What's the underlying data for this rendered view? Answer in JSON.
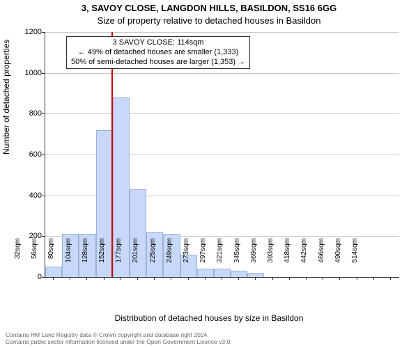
{
  "title_line1": "3, SAVOY CLOSE, LANGDON HILLS, BASILDON, SS16 6GG",
  "title_line2": "Size of property relative to detached houses in Basildon",
  "ylabel": "Number of detached properties",
  "xlabel": "Distribution of detached houses by size in Basildon",
  "footer_line1": "Contains HM Land Registry data © Crown copyright and database right 2024.",
  "footer_line2": "Contains public sector information licensed under the Open Government Licence v3.0.",
  "chart": {
    "type": "histogram",
    "background_color": "#ffffff",
    "grid_color": "#c8c8c8",
    "axis_color": "#333333",
    "bar_fill": "#c8d8f8",
    "bar_stroke": "#9db2d6",
    "marker_color": "#cc0000",
    "marker_value": 114,
    "ylim": [
      0,
      1200
    ],
    "ytick_step": 200,
    "yticks": [
      0,
      200,
      400,
      600,
      800,
      1000,
      1200
    ],
    "x_start": 20,
    "bin_width": 24,
    "n_bins": 21,
    "x_categories": [
      "32sqm",
      "56sqm",
      "80sqm",
      "104sqm",
      "128sqm",
      "152sqm",
      "177sqm",
      "201sqm",
      "225sqm",
      "249sqm",
      "273sqm",
      "297sqm",
      "321sqm",
      "345sqm",
      "369sqm",
      "393sqm",
      "418sqm",
      "442sqm",
      "466sqm",
      "490sqm",
      "514sqm"
    ],
    "values": [
      50,
      210,
      210,
      720,
      880,
      430,
      220,
      210,
      110,
      40,
      40,
      30,
      20,
      0,
      0,
      0,
      0,
      0,
      0,
      0,
      0
    ],
    "label_fontsize": 12,
    "tick_fontsize": 11
  },
  "annotation": {
    "line1": "3 SAVOY CLOSE: 114sqm",
    "line2": "← 49% of detached houses are smaller (1,333)",
    "line3": "50% of semi-detached houses are larger (1,353) →",
    "border_color": "#333333",
    "background": "#ffffff",
    "fontsize": 11
  }
}
